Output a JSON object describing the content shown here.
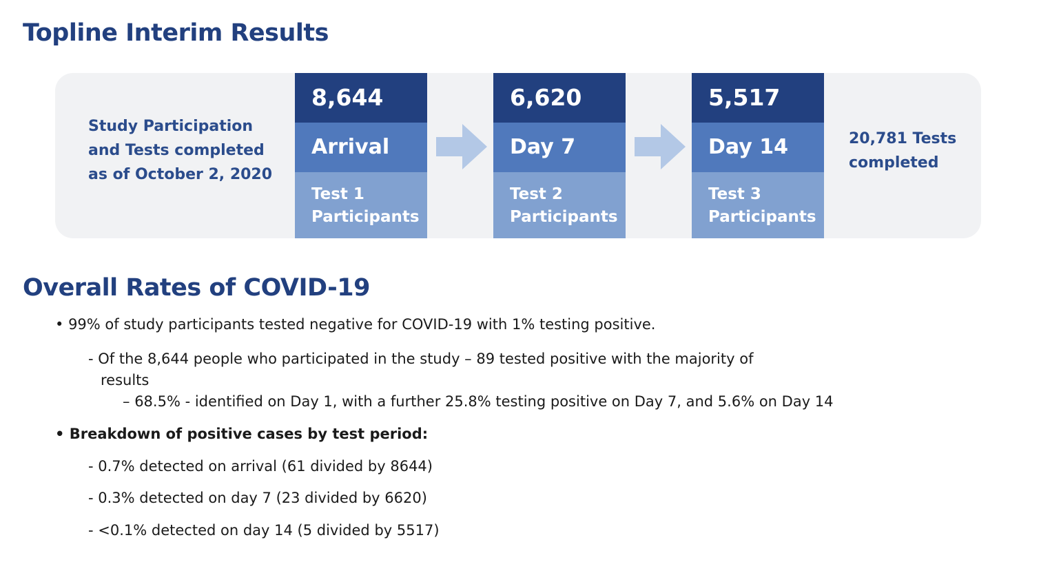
{
  "headings": {
    "topline": "Topline Interim Results",
    "overall": "Overall Rates of COVID-19"
  },
  "panel": {
    "intro_lines": [
      "Study Participation",
      "and Tests completed",
      "as of October 2, 2020"
    ],
    "stages": [
      {
        "count": "8,644",
        "label": "Arrival",
        "desc_line1": "Test 1",
        "desc_line2": "Participants"
      },
      {
        "count": "6,620",
        "label": "Day 7",
        "desc_line1": "Test 2",
        "desc_line2": "Participants"
      },
      {
        "count": "5,517",
        "label": "Day 14",
        "desc_line1": "Test 3",
        "desc_line2": "Participants"
      }
    ],
    "tests_total_lines": [
      "20,781 Tests",
      "completed"
    ]
  },
  "bullets": {
    "b1": "99% of study participants tested negative for COVID-19 with 1% testing positive.",
    "b1_1_line1": "Of the 8,644 people who participated in the study – 89 tested positive with the majority of",
    "b1_1_line2": "results",
    "b1_1_1": "68.5% - identified on Day 1, with a further 25.8% testing positive on Day 7, and 5.6% on Day 14",
    "b2": "Breakdown of positive cases by test period:",
    "b2_1": "0.7% detected on arrival (61 divided by 8644)",
    "b2_2": "0.3% detected on day 7 (23 divided by 6620)",
    "b2_3": "<0.1% detected on day 14 (5 divided by 5517)"
  },
  "colors": {
    "heading": "#22407f",
    "count_bg": "#22407f",
    "label_bg": "#5079bc",
    "desc_bg": "#81a1d0",
    "arrow": "#b3c8e6",
    "panel_bg": "#f1f2f4"
  }
}
